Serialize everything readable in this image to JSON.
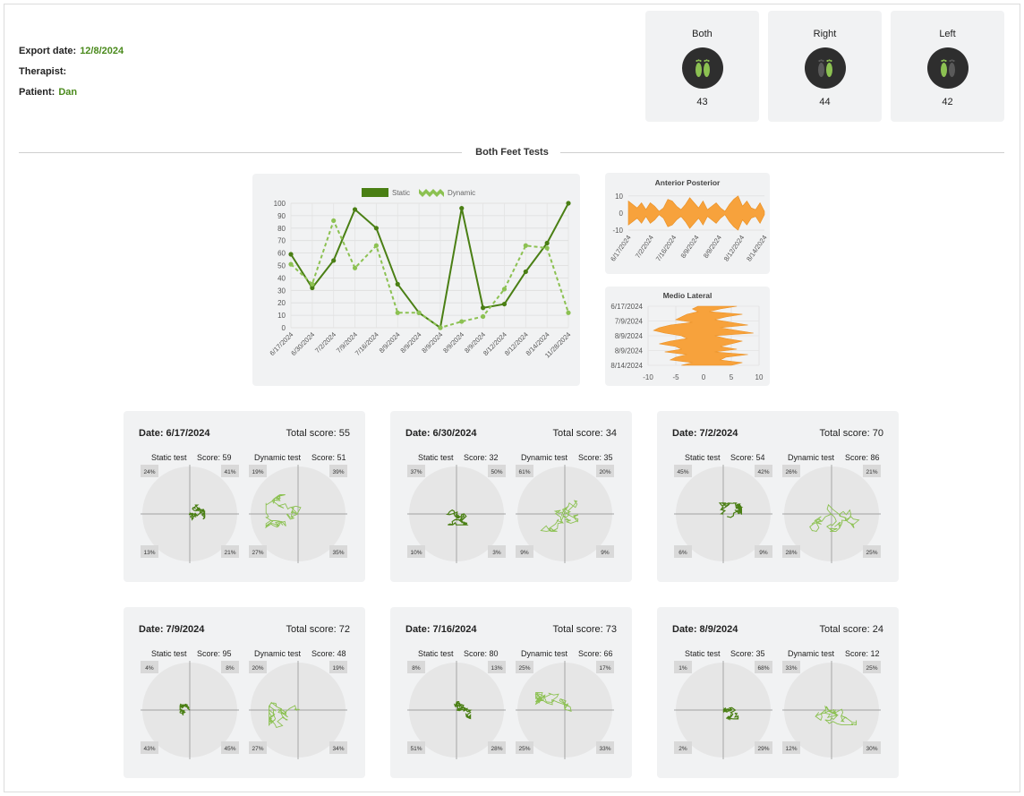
{
  "header": {
    "export_label": "Export date:",
    "export_date": "12/8/2024",
    "therapist_label": "Therapist:",
    "therapist": "",
    "patient_label": "Patient:",
    "patient": "Dan"
  },
  "foot_cards": [
    {
      "title": "Both",
      "score": "43",
      "icon": "both-feet-icon"
    },
    {
      "title": "Right",
      "score": "44",
      "icon": "right-foot-icon"
    },
    {
      "title": "Left",
      "score": "42",
      "icon": "left-foot-icon"
    }
  ],
  "section_title": "Both Feet Tests",
  "colors": {
    "static": "#4a7f14",
    "dynamic": "#8cc152",
    "orange": "#f7a23c",
    "panel": "#f1f2f3",
    "accent_text": "#4a8a1c"
  },
  "chart_data": [
    {
      "type": "line",
      "legend": [
        "Static",
        "Dynamic"
      ],
      "legend_position": "top",
      "categories": [
        "6/17/2024",
        "6/30/2024",
        "7/2/2024",
        "7/9/2024",
        "7/16/2024",
        "8/9/2024",
        "8/9/2024",
        "8/9/2024",
        "8/9/2024",
        "8/9/2024",
        "8/12/2024",
        "8/12/2024",
        "8/14/2024",
        "11/28/2024"
      ],
      "series": [
        {
          "name": "Static",
          "values": [
            59,
            32,
            54,
            95,
            80,
            35,
            12,
            0,
            96,
            16,
            19,
            45,
            68,
            100
          ]
        },
        {
          "name": "Dynamic",
          "values": [
            51,
            35,
            86,
            48,
            66,
            12,
            12,
            0,
            5,
            9,
            31,
            66,
            64,
            12
          ]
        }
      ],
      "ylim": [
        0,
        100
      ],
      "yticks": [
        0,
        10,
        20,
        30,
        40,
        50,
        60,
        70,
        80,
        90,
        100
      ],
      "grid": true
    },
    {
      "type": "area",
      "title": "Anterior Posterior",
      "categories": [
        "6/17/2024",
        "7/2/2024",
        "7/16/2024",
        "8/9/2024",
        "8/9/2024",
        "8/12/2024",
        "8/14/2024"
      ],
      "yticks": [
        10,
        0,
        -10
      ],
      "ylim": [
        -10,
        12
      ],
      "upper": [
        7,
        5,
        3,
        6,
        2,
        6,
        4,
        1,
        3,
        8,
        7,
        4,
        2,
        5,
        9,
        6,
        3,
        7,
        2,
        4,
        6,
        3,
        1,
        5,
        8,
        10,
        4,
        7,
        3,
        2,
        6,
        1
      ],
      "lower": [
        -7,
        -5,
        -3,
        -6,
        -2,
        -6,
        -4,
        -1,
        -3,
        -8,
        -7,
        -4,
        -2,
        -5,
        -9,
        -6,
        -3,
        -7,
        -2,
        -4,
        -6,
        -3,
        -1,
        -5,
        -8,
        -10,
        -4,
        -7,
        -3,
        -2,
        -6,
        -1
      ]
    },
    {
      "type": "area",
      "title": "Medio Lateral",
      "categories": [
        "6/17/2024",
        "7/9/2024",
        "8/9/2024",
        "8/9/2024",
        "8/14/2024"
      ],
      "xticks": [
        -10,
        -5,
        0,
        5,
        10
      ],
      "xlim": [
        -10,
        10
      ],
      "right": [
        6,
        3,
        1,
        7,
        4,
        2,
        5,
        8,
        3,
        6,
        9,
        2,
        4,
        7,
        5,
        3,
        6,
        2,
        8,
        4,
        3,
        7,
        5
      ],
      "left": [
        -1,
        -2,
        -1,
        -3,
        -4,
        -5,
        -2,
        -6,
        -8,
        -9,
        -7,
        -4,
        -3,
        -6,
        -8,
        -5,
        -4,
        -7,
        -3,
        -5,
        -6,
        -2,
        -4
      ]
    }
  ],
  "sessions": [
    {
      "date": "Date: 6/17/2024",
      "total": "Total score: 55",
      "static_label": "Static test",
      "static_score": "Score: 59",
      "dynamic_label": "Dynamic test",
      "dynamic_score": "Score: 51",
      "static_q": [
        "24%",
        "41%",
        "13%",
        "21%"
      ],
      "dynamic_q": [
        "19%",
        "39%",
        "27%",
        "35%"
      ],
      "s_spread": 0.22,
      "d_spread": 0.62
    },
    {
      "date": "Date: 6/30/2024",
      "total": "Total score: 34",
      "static_label": "Static test",
      "static_score": "Score: 32",
      "dynamic_label": "Dynamic test",
      "dynamic_score": "Score: 35",
      "static_q": [
        "37%",
        "50%",
        "10%",
        "3%"
      ],
      "dynamic_q": [
        "61%",
        "20%",
        "9%",
        "9%"
      ],
      "s_spread": 0.3,
      "d_spread": 0.55
    },
    {
      "date": "Date: 7/2/2024",
      "total": "Total score: 70",
      "static_label": "Static test",
      "static_score": "Score: 54",
      "dynamic_label": "Dynamic test",
      "dynamic_score": "Score: 86",
      "static_q": [
        "45%",
        "42%",
        "6%",
        "9%"
      ],
      "dynamic_q": [
        "26%",
        "21%",
        "28%",
        "25%"
      ],
      "s_spread": 0.3,
      "d_spread": 0.55
    },
    {
      "date": "Date: 7/9/2024",
      "total": "Total score: 72",
      "static_label": "Static test",
      "static_score": "Score: 95",
      "dynamic_label": "Dynamic test",
      "dynamic_score": "Score: 48",
      "static_q": [
        "4%",
        "8%",
        "43%",
        "45%"
      ],
      "dynamic_q": [
        "20%",
        "19%",
        "27%",
        "34%"
      ],
      "s_spread": 0.1,
      "d_spread": 0.55
    },
    {
      "date": "Date: 7/16/2024",
      "total": "Total score: 73",
      "static_label": "Static test",
      "static_score": "Score: 80",
      "dynamic_label": "Dynamic test",
      "dynamic_score": "Score: 66",
      "static_q": [
        "8%",
        "13%",
        "51%",
        "28%"
      ],
      "dynamic_q": [
        "25%",
        "17%",
        "25%",
        "33%"
      ],
      "s_spread": 0.2,
      "d_spread": 0.55
    },
    {
      "date": "Date: 8/9/2024",
      "total": "Total score: 24",
      "static_label": "Static test",
      "static_score": "Score: 35",
      "dynamic_label": "Dynamic test",
      "dynamic_score": "Score: 12",
      "static_q": [
        "1%",
        "68%",
        "2%",
        "29%"
      ],
      "dynamic_q": [
        "33%",
        "25%",
        "12%",
        "30%"
      ],
      "s_spread": 0.22,
      "d_spread": 0.45
    }
  ]
}
